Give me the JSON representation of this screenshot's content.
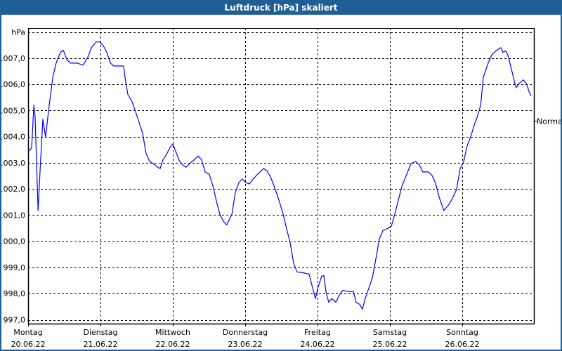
{
  "window": {
    "title": "Luftdruck [hPa] skaliert"
  },
  "chart_data": {
    "type": "line",
    "title": "Luftdruck [hPa] skaliert",
    "ylabel": "hPa",
    "xlabel": "",
    "x_unit": "hours since Montag 20.06.22 00:00",
    "xlim": [
      0,
      168
    ],
    "ylim": [
      997,
      1008
    ],
    "grid": true,
    "y_ticks": [
      {
        "value": 997,
        "label": "997,0"
      },
      {
        "value": 998,
        "label": "998,0"
      },
      {
        "value": 999,
        "label": "999,0"
      },
      {
        "value": 1000,
        "label": "1000,0"
      },
      {
        "value": 1001,
        "label": "1001,0"
      },
      {
        "value": 1002,
        "label": "1002,0"
      },
      {
        "value": 1003,
        "label": "1003,0"
      },
      {
        "value": 1004,
        "label": "1004,0"
      },
      {
        "value": 1005,
        "label": "1005,0"
      },
      {
        "value": 1006,
        "label": "1006,0"
      },
      {
        "value": 1007,
        "label": "1007,0"
      }
    ],
    "x_ticks": [
      {
        "value": 0,
        "day": "Montag",
        "date": "20.06.22"
      },
      {
        "value": 24,
        "day": "Dienstag",
        "date": "21.06.22"
      },
      {
        "value": 48,
        "day": "Mittwoch",
        "date": "22.06.22"
      },
      {
        "value": 72,
        "day": "Donnerstag",
        "date": "23.06.22"
      },
      {
        "value": 96,
        "day": "Freitag",
        "date": "24.06.22"
      },
      {
        "value": 120,
        "day": "Samstag",
        "date": "25.06.22"
      },
      {
        "value": 144,
        "day": "Sonntag",
        "date": "26.06.22"
      }
    ],
    "reference": {
      "label": "Normal",
      "value": 1004.6
    },
    "series": [
      {
        "name": "Luftdruck",
        "color": "#0000ff",
        "points": [
          [
            0.5,
            1003.45
          ],
          [
            1.2,
            1003.59
          ],
          [
            1.9,
            1005.2
          ],
          [
            2.3,
            1004.8
          ],
          [
            3.3,
            1001.17
          ],
          [
            4.0,
            1002.78
          ],
          [
            4.9,
            1004.66
          ],
          [
            5.8,
            1003.99
          ],
          [
            7.0,
            1005.2
          ],
          [
            8.2,
            1006.27
          ],
          [
            9.3,
            1006.81
          ],
          [
            10.7,
            1007.22
          ],
          [
            11.7,
            1007.3
          ],
          [
            12.8,
            1006.95
          ],
          [
            14.0,
            1006.81
          ],
          [
            16.3,
            1006.81
          ],
          [
            18.2,
            1006.73
          ],
          [
            19.8,
            1007.03
          ],
          [
            21.0,
            1007.4
          ],
          [
            22.6,
            1007.62
          ],
          [
            23.8,
            1007.62
          ],
          [
            24.9,
            1007.48
          ],
          [
            26.1,
            1007.22
          ],
          [
            27.3,
            1006.81
          ],
          [
            28.4,
            1006.7
          ],
          [
            30.3,
            1006.7
          ],
          [
            31.7,
            1006.7
          ],
          [
            32.2,
            1006.22
          ],
          [
            33.1,
            1005.6
          ],
          [
            34.5,
            1005.33
          ],
          [
            36.1,
            1004.8
          ],
          [
            38.0,
            1004.12
          ],
          [
            39.1,
            1003.37
          ],
          [
            40.3,
            1003.05
          ],
          [
            41.5,
            1002.97
          ],
          [
            42.6,
            1002.86
          ],
          [
            43.8,
            1002.78
          ],
          [
            44.7,
            1003.1
          ],
          [
            45.9,
            1003.32
          ],
          [
            47.1,
            1003.59
          ],
          [
            48.0,
            1003.72
          ],
          [
            48.9,
            1003.45
          ],
          [
            50.1,
            1003.1
          ],
          [
            51.3,
            1002.91
          ],
          [
            52.4,
            1002.83
          ],
          [
            53.6,
            1002.97
          ],
          [
            55.0,
            1003.1
          ],
          [
            56.4,
            1003.26
          ],
          [
            57.6,
            1003.1
          ],
          [
            58.7,
            1002.65
          ],
          [
            60.1,
            1002.56
          ],
          [
            61.3,
            1002.11
          ],
          [
            62.4,
            1001.57
          ],
          [
            63.6,
            1001.03
          ],
          [
            64.8,
            1000.76
          ],
          [
            65.9,
            1000.63
          ],
          [
            67.6,
            1001.03
          ],
          [
            68.7,
            1001.84
          ],
          [
            69.9,
            1002.24
          ],
          [
            71.1,
            1002.38
          ],
          [
            72.2,
            1002.24
          ],
          [
            73.4,
            1002.19
          ],
          [
            74.6,
            1002.38
          ],
          [
            75.7,
            1002.51
          ],
          [
            76.9,
            1002.65
          ],
          [
            78.1,
            1002.78
          ],
          [
            79.2,
            1002.7
          ],
          [
            80.4,
            1002.46
          ],
          [
            81.6,
            1002.11
          ],
          [
            83.2,
            1001.57
          ],
          [
            84.6,
            1001.03
          ],
          [
            85.7,
            1000.49
          ],
          [
            86.9,
            999.96
          ],
          [
            88.1,
            999.15
          ],
          [
            89.2,
            998.83
          ],
          [
            90.9,
            998.8
          ],
          [
            93.2,
            998.75
          ],
          [
            94.4,
            998.21
          ],
          [
            95.3,
            997.81
          ],
          [
            96.2,
            998.26
          ],
          [
            97.4,
            998.67
          ],
          [
            98.1,
            998.69
          ],
          [
            98.8,
            998.08
          ],
          [
            99.7,
            997.67
          ],
          [
            100.7,
            997.81
          ],
          [
            102.1,
            997.67
          ],
          [
            103.2,
            997.94
          ],
          [
            104.4,
            998.13
          ],
          [
            106.0,
            998.08
          ],
          [
            107.9,
            998.08
          ],
          [
            108.8,
            997.67
          ],
          [
            110.0,
            997.59
          ],
          [
            110.9,
            997.4
          ],
          [
            111.8,
            997.81
          ],
          [
            113.0,
            998.21
          ],
          [
            114.2,
            998.61
          ],
          [
            115.3,
            999.29
          ],
          [
            116.5,
            1000.09
          ],
          [
            117.7,
            1000.41
          ],
          [
            119.3,
            1000.49
          ],
          [
            120.5,
            1000.58
          ],
          [
            121.6,
            1001.03
          ],
          [
            122.8,
            1001.57
          ],
          [
            124.0,
            1002.11
          ],
          [
            125.4,
            1002.51
          ],
          [
            127.0,
            1002.97
          ],
          [
            128.6,
            1003.05
          ],
          [
            129.8,
            1002.91
          ],
          [
            130.9,
            1002.65
          ],
          [
            132.8,
            1002.65
          ],
          [
            134.0,
            1002.51
          ],
          [
            135.1,
            1002.24
          ],
          [
            136.3,
            1001.7
          ],
          [
            137.9,
            1001.17
          ],
          [
            139.8,
            1001.44
          ],
          [
            141.0,
            1001.7
          ],
          [
            142.1,
            1001.97
          ],
          [
            143.3,
            1002.78
          ],
          [
            144.5,
            1003.05
          ],
          [
            145.6,
            1003.64
          ],
          [
            146.8,
            1003.99
          ],
          [
            148.0,
            1004.45
          ],
          [
            149.1,
            1004.8
          ],
          [
            150.1,
            1005.2
          ],
          [
            151.0,
            1006.27
          ],
          [
            152.6,
            1006.81
          ],
          [
            153.8,
            1007.13
          ],
          [
            155.4,
            1007.3
          ],
          [
            156.8,
            1007.4
          ],
          [
            157.5,
            1007.22
          ],
          [
            158.4,
            1007.27
          ],
          [
            159.1,
            1007.13
          ],
          [
            160.1,
            1006.68
          ],
          [
            161.5,
            1006.01
          ],
          [
            161.9,
            1005.87
          ],
          [
            163.1,
            1006.06
          ],
          [
            164.3,
            1006.17
          ],
          [
            165.4,
            1006.01
          ],
          [
            166.1,
            1005.74
          ],
          [
            166.8,
            1005.55
          ]
        ]
      }
    ]
  }
}
